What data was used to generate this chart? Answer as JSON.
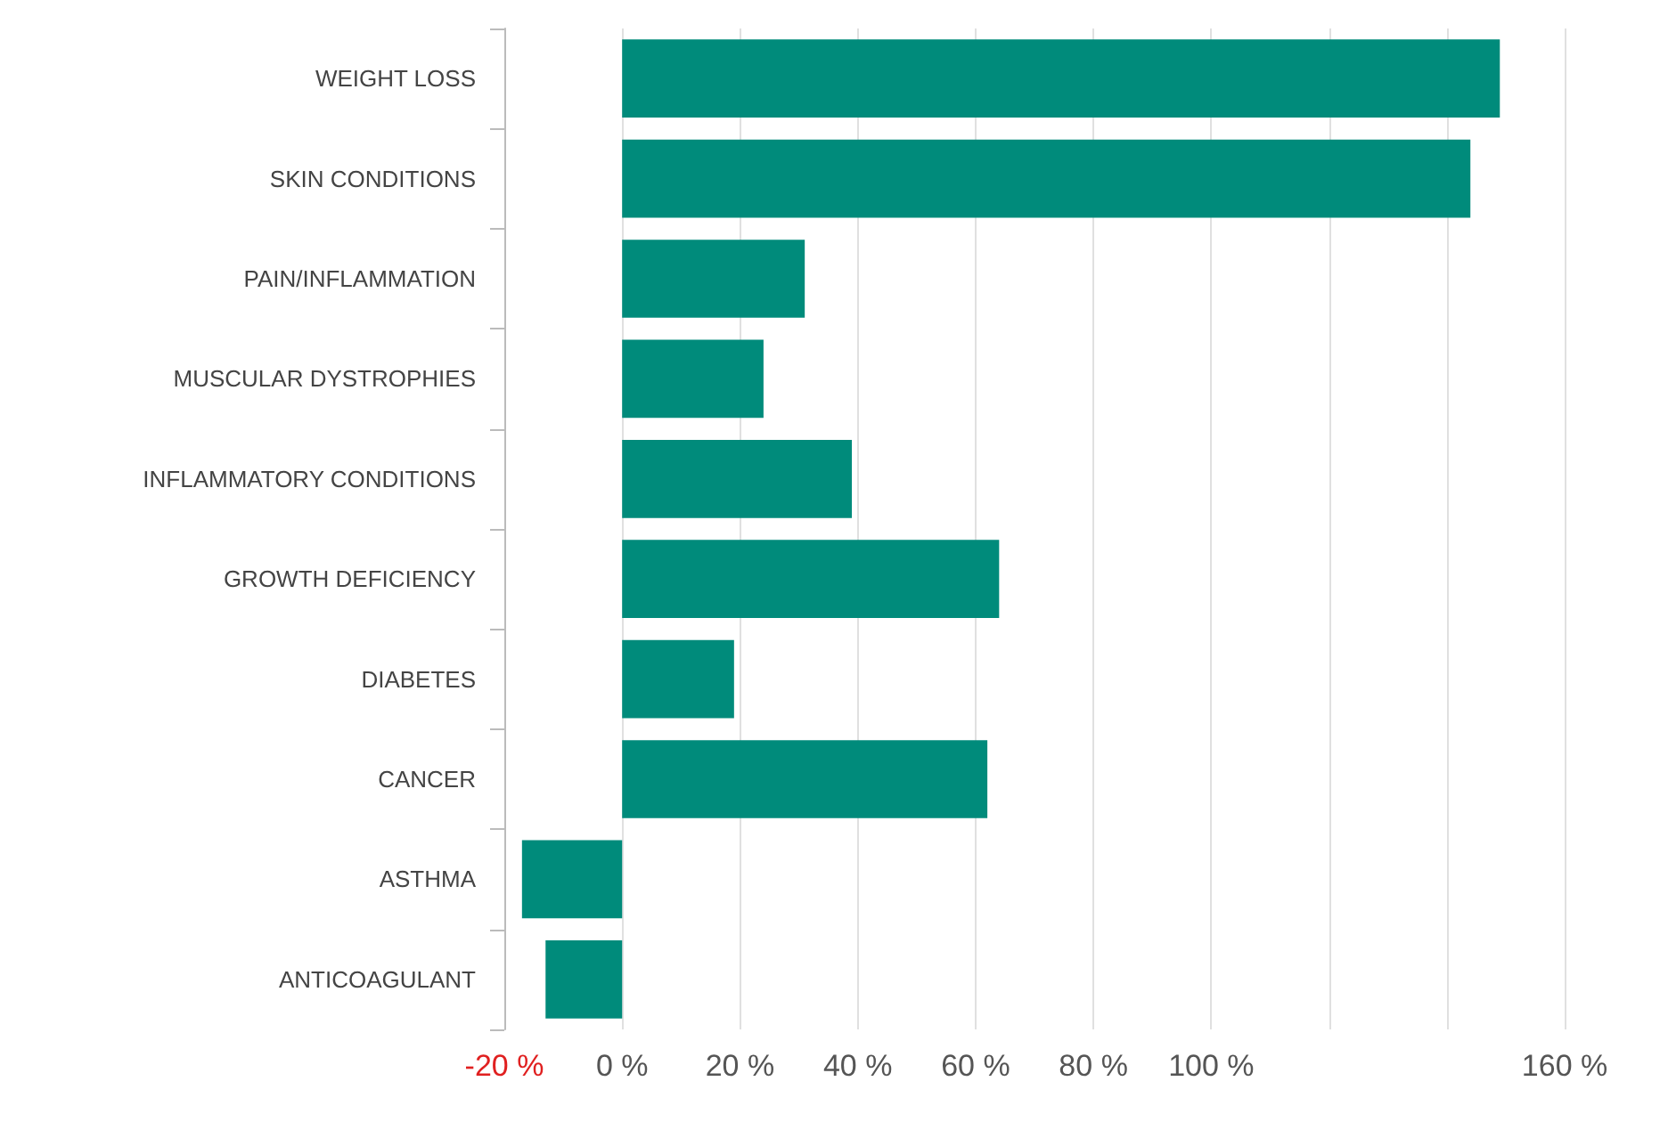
{
  "chart_data": {
    "type": "bar",
    "orientation": "horizontal",
    "categories": [
      "WEIGHT LOSS",
      "SKIN CONDITIONS",
      "PAIN/INFLAMMATION",
      "MUSCULAR DYSTROPHIES",
      "INFLAMMATORY CONDITIONS",
      "GROWTH DEFICIENCY",
      "DIABETES",
      "CANCER",
      "ASTHMA",
      "ANTICOAGULANT"
    ],
    "values": [
      149,
      144,
      31,
      24,
      39,
      64,
      19,
      62,
      -17,
      -13
    ],
    "color": "#008b7b",
    "xlim": [
      -20,
      160
    ],
    "xticks": [
      {
        "value": -20,
        "label": "-20 %"
      },
      {
        "value": 0,
        "label": "0 %"
      },
      {
        "value": 20,
        "label": "20 %"
      },
      {
        "value": 40,
        "label": "40 %"
      },
      {
        "value": 60,
        "label": "60 %"
      },
      {
        "value": 80,
        "label": "80 %"
      },
      {
        "value": 100,
        "label": "100 %"
      },
      {
        "value": 120,
        "label": null
      },
      {
        "value": 140,
        "label": null
      },
      {
        "value": 160,
        "label": "160 %"
      }
    ],
    "grid": "x"
  }
}
